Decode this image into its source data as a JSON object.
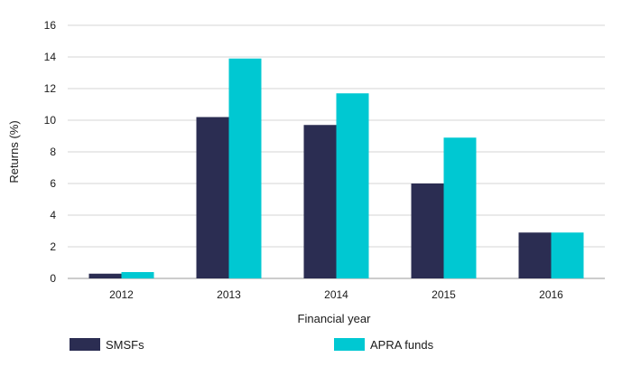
{
  "chart_data": {
    "type": "bar",
    "title": "",
    "xlabel": "Financial year",
    "ylabel": "Returns (%)",
    "ylim": [
      0,
      16
    ],
    "yticks": [
      0,
      2,
      4,
      6,
      8,
      10,
      12,
      14,
      16
    ],
    "grid": true,
    "legend_position": "bottom",
    "categories": [
      "2012",
      "2013",
      "2014",
      "2015",
      "2016"
    ],
    "series": [
      {
        "name": "SMSFs",
        "color": "#2b2d52",
        "values": [
          0.3,
          10.2,
          9.7,
          6.0,
          2.9
        ]
      },
      {
        "name": "APRA funds",
        "color": "#00c8d2",
        "values": [
          0.4,
          13.9,
          11.7,
          8.9,
          2.9
        ]
      }
    ]
  }
}
